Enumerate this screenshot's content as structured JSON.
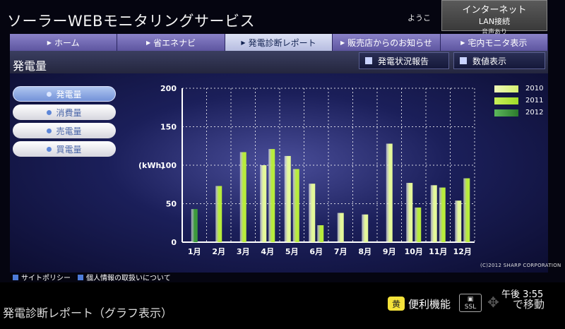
{
  "app": {
    "title": "ソーラーWEBモニタリングサービス",
    "welcome": "ようこ",
    "status_line1": "インターネット",
    "status_line2": "LAN接続",
    "status_line3": "音声あり"
  },
  "nav": {
    "tabs": [
      {
        "label": "ホーム"
      },
      {
        "label": "省エネナビ"
      },
      {
        "label": "発電診断レポート"
      },
      {
        "label": "販売店からのお知らせ"
      },
      {
        "label": "宅内モニタ表示"
      }
    ]
  },
  "header": {
    "page_title": "発電量",
    "btn_report": "発電状況報告",
    "btn_values": "数値表示"
  },
  "sidebar": {
    "items": [
      {
        "label": "発電量"
      },
      {
        "label": "消費量"
      },
      {
        "label": "売電量"
      },
      {
        "label": "買電量"
      }
    ]
  },
  "colors": {
    "nav_active": "#c8cdea",
    "bar_2010": "#e4f89a",
    "bar_2011": "#b8ec3c",
    "bar_2012": "#3c9a3c"
  },
  "chart_data": {
    "type": "bar",
    "ylabel": "(kWh)",
    "ylim": [
      0,
      200
    ],
    "yticks": [
      0,
      50,
      100,
      150,
      200
    ],
    "categories": [
      "1月",
      "2月",
      "3月",
      "4月",
      "5月",
      "6月",
      "7月",
      "8月",
      "9月",
      "10月",
      "11月",
      "12月"
    ],
    "series": [
      {
        "name": "2010",
        "color": "#e4f89a",
        "values": [
          null,
          null,
          null,
          100,
          112,
          76,
          38,
          36,
          128,
          77,
          74,
          54
        ]
      },
      {
        "name": "2011",
        "color": "#b8ec3c",
        "values": [
          null,
          73,
          117,
          121,
          95,
          22,
          null,
          null,
          null,
          45,
          71,
          83
        ]
      },
      {
        "name": "2012",
        "color": "#3c9a3c",
        "values": [
          43,
          null,
          null,
          null,
          null,
          null,
          null,
          null,
          null,
          null,
          null,
          null
        ]
      }
    ],
    "grid": true,
    "legend": "top-right"
  },
  "footer": {
    "copyright": "(C)2012 SHARP CORPORATION",
    "link_policy": "サイトポリシー",
    "link_privacy": "個人情報の取扱いについて"
  },
  "tvbar": {
    "title": "発電診断レポート（グラフ表示）",
    "yellow_key": "黄",
    "conv_label": "便利機能",
    "ssl_top": "SSL",
    "clock": "午後 3:55",
    "move_label": "で移動"
  }
}
